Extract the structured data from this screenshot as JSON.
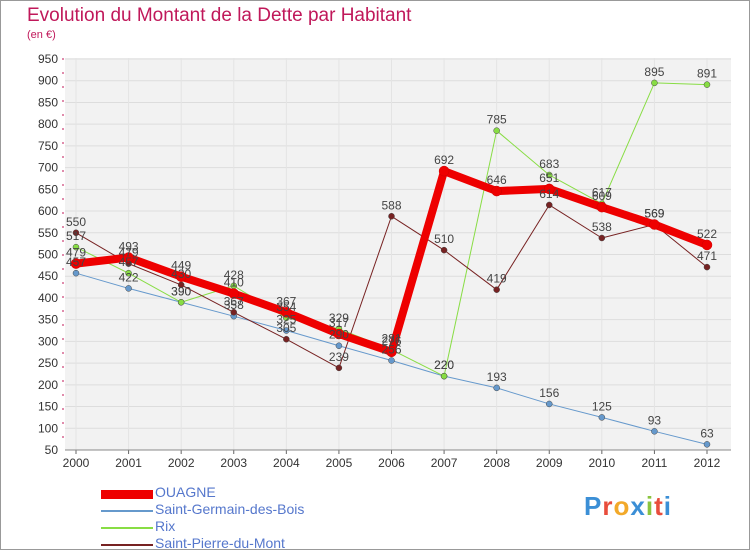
{
  "title": "Evolution du Montant de la Dette par Habitant",
  "unit": "(en €)",
  "logo": "Proxiti",
  "chart_data": {
    "type": "line",
    "x": [
      "2000",
      "2001",
      "2002",
      "2003",
      "2004",
      "2005",
      "2006",
      "2007",
      "2008",
      "2009",
      "2010",
      "2011",
      "2012"
    ],
    "ylim": [
      50,
      950
    ],
    "yticks": [
      50,
      100,
      150,
      200,
      250,
      300,
      350,
      400,
      450,
      500,
      550,
      600,
      650,
      700,
      750,
      800,
      850,
      900,
      950
    ],
    "grid": true,
    "legend": "bottom-left",
    "series": [
      {
        "name": "OUAGNE",
        "color": "#ee0000",
        "width": 8,
        "values": [
          479,
          493,
          449,
          410,
          367,
          317,
          276,
          692,
          646,
          651,
          609,
          569,
          522
        ]
      },
      {
        "name": "Saint-Germain-des-Bois",
        "color": "#6699cc",
        "width": 1,
        "values": [
          457,
          422,
          390,
          358,
          325,
          290,
          256,
          220,
          193,
          156,
          125,
          93,
          63
        ]
      },
      {
        "name": "Rix",
        "color": "#88dd44",
        "width": 1,
        "values": [
          517,
          457,
          390,
          428,
          354,
          329,
          281,
          220,
          785,
          683,
          617,
          895,
          891
        ]
      },
      {
        "name": "Saint-Pierre-du-Mont",
        "color": "#772222",
        "width": 1,
        "values": [
          550,
          479,
          430,
          367,
          305,
          239,
          588,
          510,
          419,
          614,
          538,
          569,
          471
        ]
      }
    ]
  }
}
